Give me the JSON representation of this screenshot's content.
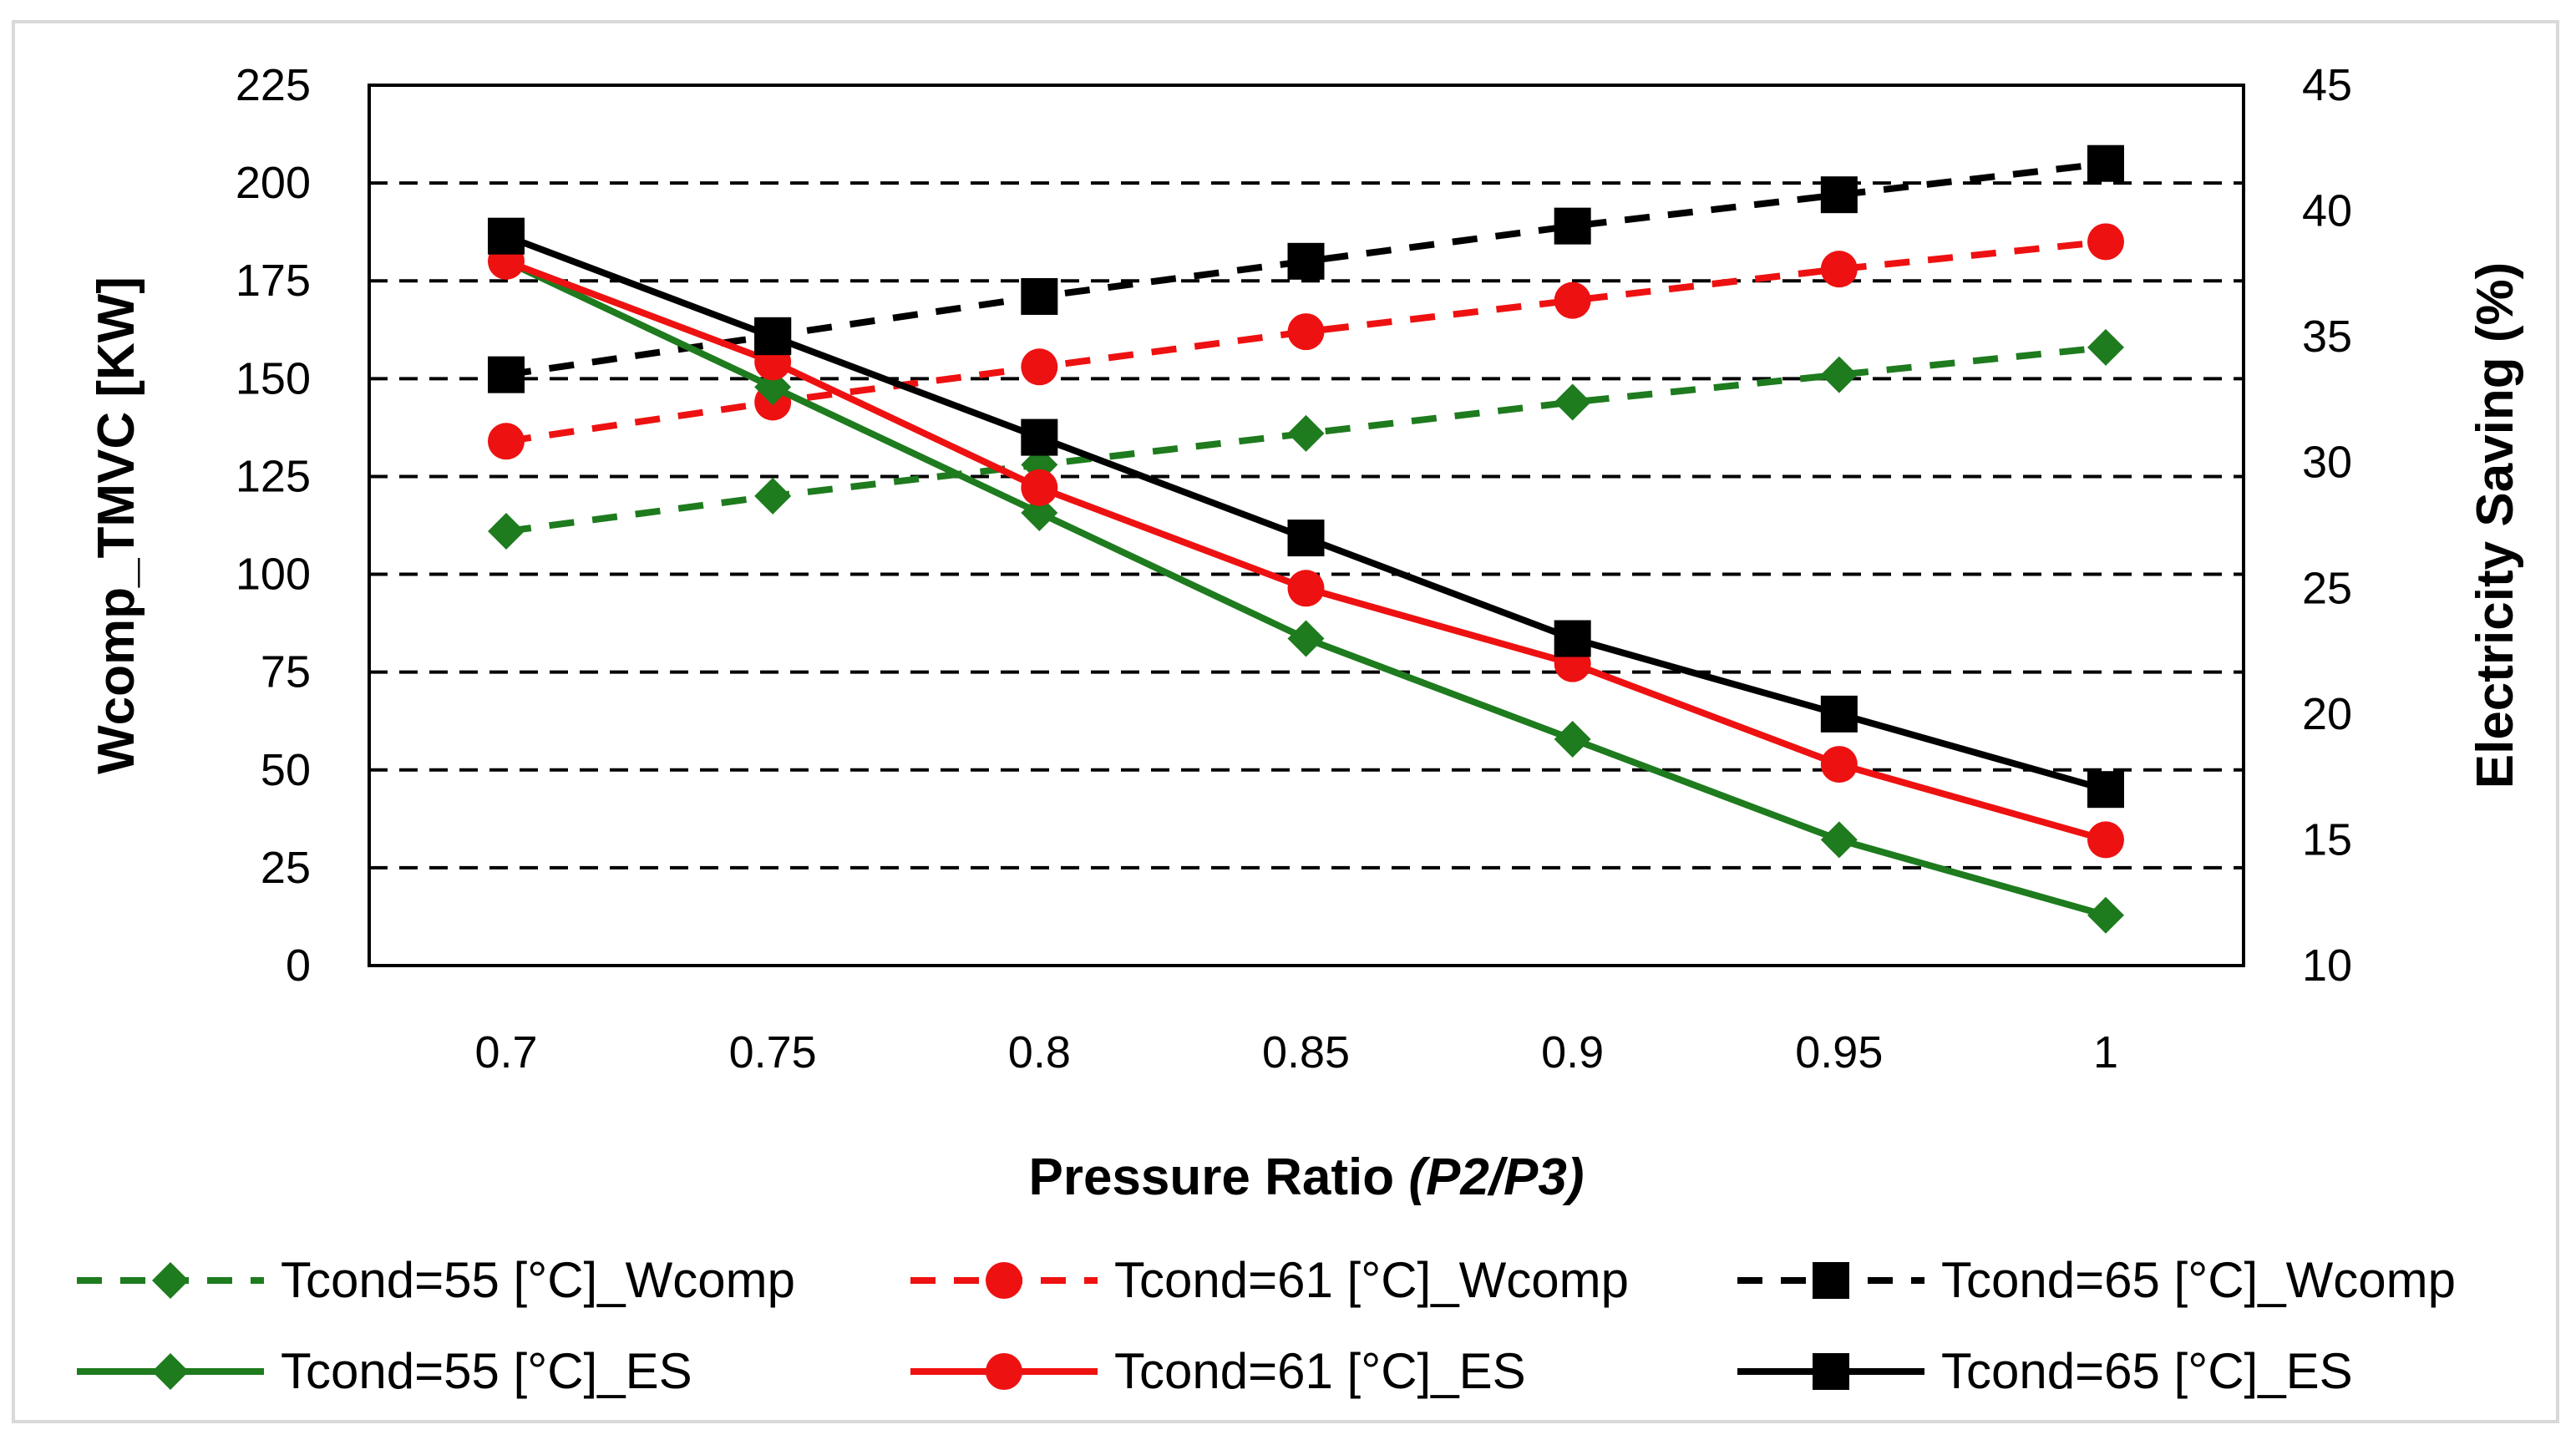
{
  "chart_data": {
    "type": "line",
    "x": [
      0.7,
      0.75,
      0.8,
      0.85,
      0.9,
      0.95,
      1
    ],
    "x_tick_labels": [
      "0.7",
      "0.75",
      "0.8",
      "0.85",
      "0.9",
      "0.95",
      "1"
    ],
    "xlabel": {
      "main": "Pressure Ratio ",
      "italic": "(P2/P3)"
    },
    "ylabel_left": "Wcomp_TMVC [KW]",
    "ylabel_right": "Electricity Saving (%)",
    "ylim_left": [
      0,
      225
    ],
    "ylim_right": [
      10,
      45
    ],
    "y_ticks_left": [
      0,
      25,
      50,
      75,
      100,
      125,
      150,
      175,
      200,
      225
    ],
    "y_ticks_right": [
      10,
      15,
      20,
      25,
      30,
      35,
      40,
      45
    ],
    "grid": "horizontal-dashed",
    "legend_position": "bottom",
    "series": [
      {
        "name": "Tcond=55 [°C]_Wcomp",
        "axis": "left",
        "color": "#1e7b1e",
        "marker": "diamond",
        "dash": true,
        "values": [
          111,
          120,
          128,
          136,
          144,
          151,
          158
        ]
      },
      {
        "name": "Tcond=61 [°C]_Wcomp",
        "axis": "left",
        "color": "#ee1111",
        "marker": "circle",
        "dash": true,
        "values": [
          134,
          144,
          153,
          162,
          170,
          178,
          185
        ]
      },
      {
        "name": "Tcond=65 [°C]_Wcomp",
        "axis": "left",
        "color": "#000000",
        "marker": "square",
        "dash": true,
        "values": [
          151,
          161,
          171,
          180,
          189,
          197,
          205
        ]
      },
      {
        "name": "Tcond=55 [°C]_ES",
        "axis": "right",
        "color": "#1e7b1e",
        "marker": "diamond",
        "dash": false,
        "values": [
          38,
          33,
          28,
          23,
          19,
          15,
          12
        ]
      },
      {
        "name": "Tcond=61 [°C]_ES",
        "axis": "right",
        "color": "#ee1111",
        "marker": "circle",
        "dash": false,
        "values": [
          38,
          34,
          29,
          25,
          22,
          18,
          15
        ]
      },
      {
        "name": "Tcond=65 [°C]_ES",
        "axis": "right",
        "color": "#000000",
        "marker": "square",
        "dash": false,
        "values": [
          39,
          35,
          31,
          27,
          23,
          20,
          17
        ]
      }
    ]
  }
}
